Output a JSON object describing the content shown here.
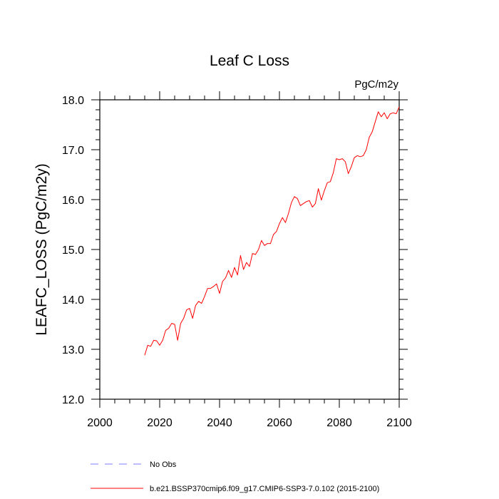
{
  "chart_data": {
    "type": "line",
    "title": "Leaf C Loss",
    "units": "PgC/m2y",
    "xlabel": "",
    "ylabel": "LEAFC_LOSS  (PgC/m2y)",
    "xlim": [
      2000,
      2100
    ],
    "ylim": [
      12.0,
      18.0
    ],
    "xticks": [
      2000,
      2020,
      2040,
      2060,
      2080,
      2100
    ],
    "xtick_labels": [
      "2000",
      "2020",
      "2040",
      "2060",
      "2080",
      "2100"
    ],
    "yticks": [
      12.0,
      13.0,
      14.0,
      15.0,
      16.0,
      17.0,
      18.0
    ],
    "ytick_labels": [
      "12.0",
      "13.0",
      "14.0",
      "15.0",
      "16.0",
      "17.0",
      "18.0"
    ],
    "grid": false,
    "legend_position": "bottom",
    "series": [
      {
        "name": "b.e21.BSSP370cmip6.f09_g17.CMIP6-SSP3-7.0.102 (2015-2100)",
        "color": "#ff0000",
        "dash": "solid",
        "x": [
          2015,
          2016,
          2017,
          2018,
          2019,
          2020,
          2021,
          2022,
          2023,
          2024,
          2025,
          2026,
          2027,
          2028,
          2029,
          2030,
          2031,
          2032,
          2033,
          2034,
          2035,
          2036,
          2037,
          2038,
          2039,
          2040,
          2041,
          2042,
          2043,
          2044,
          2045,
          2046,
          2047,
          2048,
          2049,
          2050,
          2051,
          2052,
          2053,
          2054,
          2055,
          2056,
          2057,
          2058,
          2059,
          2060,
          2061,
          2062,
          2063,
          2064,
          2065,
          2066,
          2067,
          2068,
          2069,
          2070,
          2071,
          2072,
          2073,
          2074,
          2075,
          2076,
          2077,
          2078,
          2079,
          2080,
          2081,
          2082,
          2083,
          2084,
          2085,
          2086,
          2087,
          2088,
          2089,
          2090,
          2091,
          2092,
          2093,
          2094,
          2095,
          2096,
          2097,
          2098,
          2099,
          2100
        ],
        "values": [
          12.88,
          13.08,
          13.06,
          13.18,
          13.17,
          13.08,
          13.18,
          13.38,
          13.42,
          13.52,
          13.5,
          13.18,
          13.52,
          13.62,
          13.79,
          13.82,
          13.62,
          13.88,
          13.96,
          13.92,
          14.06,
          14.22,
          14.22,
          14.26,
          14.31,
          14.12,
          14.36,
          14.43,
          14.58,
          14.44,
          14.64,
          14.49,
          14.88,
          14.6,
          14.74,
          14.66,
          14.92,
          14.9,
          15.0,
          15.18,
          15.08,
          15.12,
          15.12,
          15.3,
          15.36,
          15.52,
          15.64,
          15.54,
          15.72,
          15.94,
          16.06,
          16.02,
          15.88,
          15.92,
          15.96,
          15.98,
          15.85,
          15.92,
          16.22,
          15.99,
          16.18,
          16.34,
          16.36,
          16.54,
          16.82,
          16.8,
          16.82,
          16.76,
          16.52,
          16.66,
          16.84,
          16.88,
          16.86,
          16.88,
          17.0,
          17.25,
          17.36,
          17.56,
          17.76,
          17.66,
          17.74,
          17.62,
          17.72,
          17.74,
          17.72,
          17.86
        ]
      },
      {
        "name": "No Obs",
        "color": "#7b7bff",
        "dash": "dashed",
        "x": [],
        "values": []
      }
    ]
  }
}
